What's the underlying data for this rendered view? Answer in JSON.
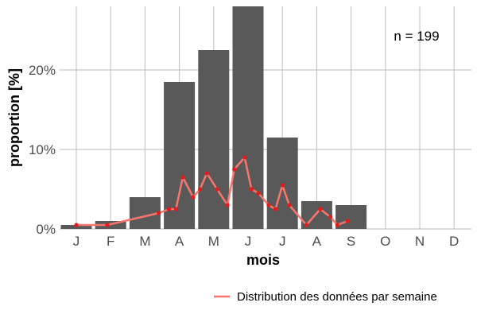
{
  "chart_data": {
    "type": "bar",
    "xlabel": "mois",
    "ylabel": "proportion [%]",
    "categories": [
      "J",
      "F",
      "M",
      "A",
      "M",
      "J",
      "J",
      "A",
      "S",
      "O",
      "N",
      "D"
    ],
    "values": [
      0.5,
      1.0,
      4.0,
      18.5,
      22.5,
      28.5,
      11.5,
      3.5,
      3.0,
      0,
      0,
      0
    ],
    "ylim": [
      0,
      28
    ],
    "yticks": [
      0,
      10,
      20
    ],
    "ytick_labels": [
      "0%",
      "10%",
      "20%"
    ],
    "grid": true,
    "bar_color": "#595959",
    "annotation": "n = 199",
    "series": [
      {
        "name": "Distribution des données par semaine",
        "type": "line",
        "color": "#f8766d",
        "point_color": "#e41a1c",
        "x": [
          0,
          0.9,
          2.4,
          2.7,
          2.9,
          3.1,
          3.4,
          3.6,
          3.8,
          4.1,
          4.4,
          4.6,
          4.9,
          5.1,
          5.3,
          5.6,
          5.8,
          6.0,
          6.2,
          6.7,
          7.1,
          7.4,
          7.6,
          7.9
        ],
        "values": [
          0.5,
          0.5,
          2.0,
          2.5,
          2.5,
          6.5,
          4.0,
          5.0,
          7.0,
          5.0,
          3.0,
          7.5,
          9.0,
          5.0,
          4.5,
          3.0,
          2.5,
          5.5,
          3.0,
          0.5,
          2.5,
          1.5,
          0.5,
          1.0
        ]
      }
    ],
    "legend": "bottom-right"
  }
}
